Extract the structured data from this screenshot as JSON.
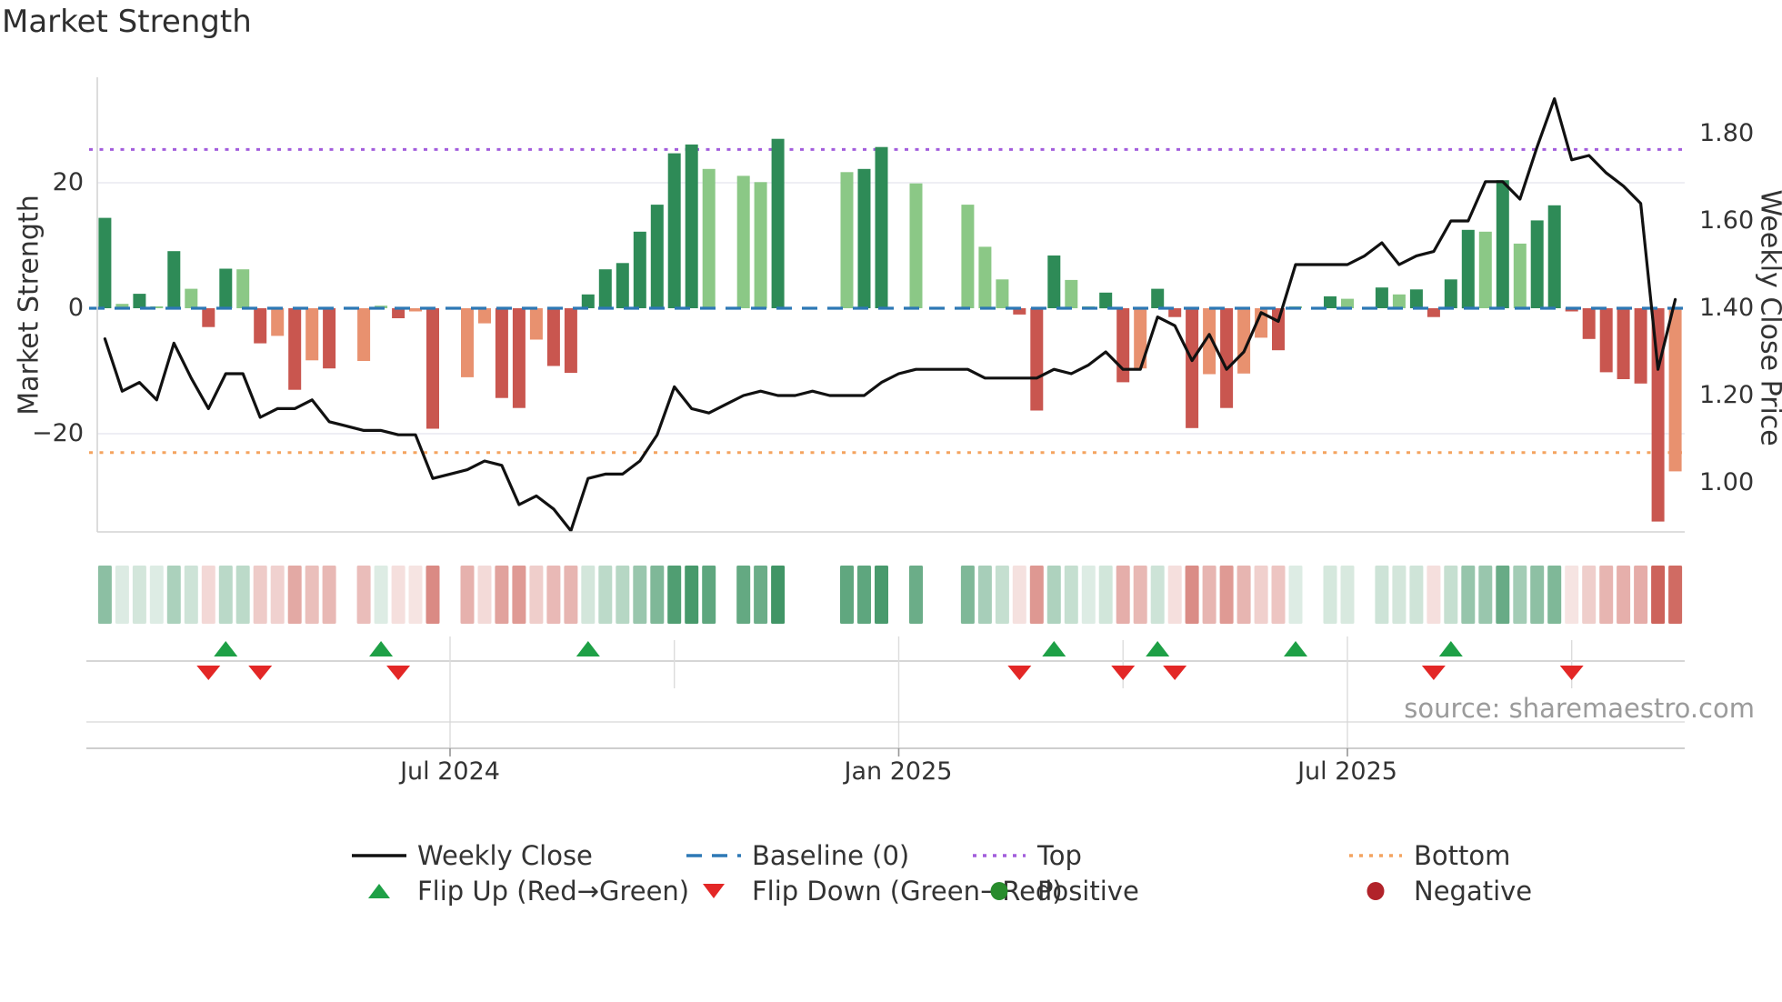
{
  "title": "Market Strength",
  "source": "source: sharemaestro.com",
  "axes": {
    "left_label": "Market Strength",
    "right_label": "Weekly Close Price",
    "left_ticks": [
      "20",
      "0",
      "−20"
    ],
    "right_ticks": [
      "1.80",
      "1.60",
      "1.40",
      "1.20",
      "1.00"
    ],
    "date_ticks": [
      "Jul 2024",
      "Jan 2025",
      "Jul 2025"
    ]
  },
  "legend": {
    "items": [
      {
        "swatch": "line-black",
        "label": "Weekly Close"
      },
      {
        "swatch": "dash-blue",
        "label": "Baseline (0)"
      },
      {
        "swatch": "dot-purple",
        "label": "Top"
      },
      {
        "swatch": "dot-orange",
        "label": "Bottom"
      },
      {
        "swatch": "triangle-up-green",
        "label": "Flip Up (Red→Green)"
      },
      {
        "swatch": "triangle-down-red",
        "label": "Flip Down (Green→Red)"
      },
      {
        "swatch": "circle-green",
        "label": "Positive"
      },
      {
        "swatch": "circle-darkred",
        "label": "Negative"
      }
    ]
  },
  "colors": {
    "dark_green": "#2e8b57",
    "light_green": "#8bc886",
    "dark_red": "#c9564f",
    "salmon": "#e8916f",
    "heat_green": "46,139,87",
    "heat_red": "201,86,77",
    "baseline_blue": "#2d78b5",
    "top_purple": "#a25ddc",
    "bottom_orange": "#f4a460",
    "flip_up_green": "#1ea046",
    "flip_down_red": "#e32726",
    "positive_green": "#288c2d",
    "negative_red": "#b1232a",
    "close_line": "#111111",
    "gridline": "#e9e9f1",
    "spine": "#d4d4d4",
    "axis_line": "#bdbdbd"
  },
  "chart_data": {
    "type": "bar+line",
    "title": "Market Strength",
    "ylabel": "Market Strength",
    "y2label": "Weekly Close Price",
    "n_weeks": 92,
    "ylim": [
      -36,
      37
    ],
    "y2lim": [
      0.88,
      1.93
    ],
    "left_tick_values": [
      20,
      0,
      -20
    ],
    "right_tick_values": [
      1.8,
      1.6,
      1.4,
      1.2,
      1.0
    ],
    "baseline": 0,
    "top_level": 25.3,
    "bottom_level": -23,
    "x_ticks": [
      {
        "label": "Jul 2024",
        "index": 20
      },
      {
        "label": "Jan 2025",
        "index": 46
      },
      {
        "label": "Jul 2025",
        "index": 72
      }
    ],
    "quarter_tick_indices": [
      20,
      33,
      46,
      59,
      72,
      85
    ],
    "bar_values": [
      14.4,
      0.7,
      2.3,
      0.3,
      9.1,
      3.1,
      -3.0,
      6.3,
      6.2,
      -5.6,
      -4.4,
      -13.0,
      -8.3,
      -9.6,
      null,
      -8.4,
      0.4,
      -1.6,
      -0.5,
      -19.2,
      null,
      -11.0,
      -2.4,
      -14.3,
      -15.9,
      -5.0,
      -9.2,
      -10.3,
      2.2,
      6.2,
      7.2,
      12.2,
      16.5,
      24.7,
      26.1,
      22.2,
      null,
      21.1,
      20.1,
      27.0,
      null,
      null,
      null,
      21.7,
      22.2,
      25.7,
      null,
      19.9,
      null,
      null,
      16.5,
      9.8,
      4.6,
      -1.0,
      -16.3,
      8.4,
      4.5,
      0.3,
      2.5,
      -11.8,
      -9.6,
      3.1,
      -1.4,
      -19.1,
      -10.5,
      -15.9,
      -10.4,
      -4.7,
      -6.7,
      0.3,
      null,
      1.9,
      1.5,
      null,
      3.3,
      2.2,
      3.0,
      -1.4,
      4.6,
      12.5,
      12.2,
      20.4,
      10.3,
      14.0,
      16.4,
      -0.5,
      -4.9,
      -10.2,
      -11.3,
      -12.0,
      -34.0,
      -26.0
    ],
    "bar_shades": [
      "dg",
      "lg",
      "dg",
      "lg",
      "dg",
      "lg",
      "dr",
      "dg",
      "lg",
      "dr",
      "sr",
      "dr",
      "sr",
      "dr",
      null,
      "sr",
      "lg",
      "dr",
      "sr",
      "dr",
      null,
      "sr",
      "sr",
      "dr",
      "dr",
      "sr",
      "dr",
      "dr",
      "dg",
      "dg",
      "dg",
      "dg",
      "dg",
      "dg",
      "dg",
      "lg",
      null,
      "lg",
      "lg",
      "dg",
      null,
      null,
      null,
      "lg",
      "dg",
      "dg",
      null,
      "lg",
      null,
      null,
      "lg",
      "lg",
      "lg",
      "dr",
      "dr",
      "dg",
      "lg",
      "lg",
      "dg",
      "dr",
      "sr",
      "dg",
      "dr",
      "dr",
      "sr",
      "dr",
      "sr",
      "sr",
      "dr",
      "lg",
      null,
      "dg",
      "lg",
      null,
      "dg",
      "lg",
      "dg",
      "dr",
      "dg",
      "dg",
      "lg",
      "dg",
      "lg",
      "dg",
      "dg",
      "dr",
      "dr",
      "dr",
      "dr",
      "dr",
      "dr",
      "sr"
    ],
    "close_values": [
      1.33,
      1.21,
      1.23,
      1.19,
      1.32,
      1.24,
      1.17,
      1.25,
      1.25,
      1.15,
      1.17,
      1.17,
      1.19,
      1.14,
      1.13,
      1.12,
      1.12,
      1.11,
      1.11,
      1.01,
      1.02,
      1.03,
      1.05,
      1.04,
      0.95,
      0.97,
      0.94,
      0.89,
      1.01,
      1.02,
      1.02,
      1.05,
      1.11,
      1.22,
      1.17,
      1.16,
      1.18,
      1.2,
      1.21,
      1.2,
      1.2,
      1.21,
      1.2,
      1.2,
      1.2,
      1.23,
      1.25,
      1.26,
      1.26,
      1.26,
      1.26,
      1.24,
      1.24,
      1.24,
      1.24,
      1.26,
      1.25,
      1.27,
      1.3,
      1.26,
      1.26,
      1.38,
      1.36,
      1.28,
      1.34,
      1.26,
      1.3,
      1.39,
      1.37,
      1.5,
      1.5,
      1.5,
      1.5,
      1.52,
      1.55,
      1.5,
      1.52,
      1.53,
      1.6,
      1.6,
      1.69,
      1.69,
      1.65,
      1.77,
      1.88,
      1.74,
      1.75,
      1.71,
      1.68,
      1.64,
      1.26,
      1.42
    ],
    "flip_up_indices": [
      7,
      16,
      28,
      55,
      61,
      69,
      78
    ],
    "flip_down_indices": [
      6,
      9,
      17,
      53,
      59,
      62,
      77,
      85
    ],
    "legend_position": "bottom",
    "grid": "horizontal-only"
  }
}
